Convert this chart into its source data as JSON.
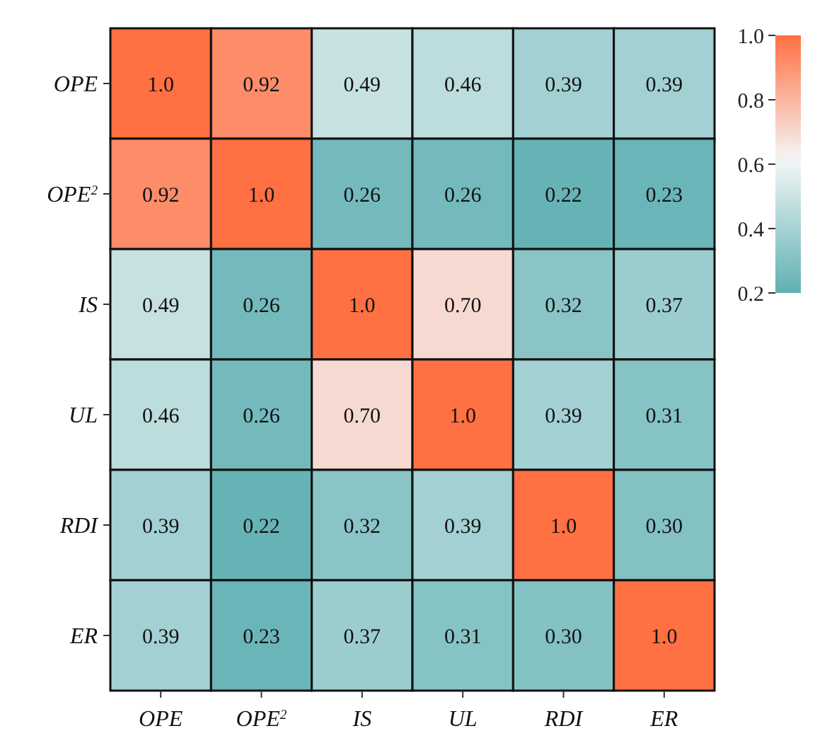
{
  "chart_data": {
    "type": "heatmap",
    "categories": [
      "OPE",
      "OPE$^{2}$",
      "IS",
      "UL",
      "RDI",
      "ER"
    ],
    "y_categories": [
      "OPE",
      "OPE$^{2}$",
      "IS",
      "UL",
      "RDI",
      "ER"
    ],
    "cells": [
      [
        1.0,
        0.92,
        0.49,
        0.46,
        0.39,
        0.39
      ],
      [
        0.92,
        1.0,
        0.26,
        0.26,
        0.22,
        0.23
      ],
      [
        0.49,
        0.26,
        1.0,
        0.7,
        0.32,
        0.37
      ],
      [
        0.46,
        0.26,
        0.7,
        1.0,
        0.39,
        0.31
      ],
      [
        0.39,
        0.22,
        0.32,
        0.39,
        1.0,
        0.3
      ],
      [
        0.39,
        0.23,
        0.37,
        0.31,
        0.3,
        1.0
      ]
    ],
    "cell_labels": [
      [
        "1.0",
        "0.92",
        "0.49",
        "0.46",
        "0.39",
        "0.39"
      ],
      [
        "0.92",
        "1.0",
        "0.26",
        "0.26",
        "0.22",
        "0.23"
      ],
      [
        "0.49",
        "0.26",
        "1.0",
        "0.70",
        "0.32",
        "0.37"
      ],
      [
        "0.46",
        "0.26",
        "0.70",
        "1.0",
        "0.39",
        "0.31"
      ],
      [
        "0.39",
        "0.22",
        "0.32",
        "0.39",
        "1.0",
        "0.30"
      ],
      [
        "0.39",
        "0.23",
        "0.37",
        "0.31",
        "0.30",
        "1.0"
      ]
    ],
    "clim": [
      0.2,
      1.0
    ],
    "cticks": [
      {
        "value": 1.0,
        "label": "1.0"
      },
      {
        "value": 0.8,
        "label": "0.8"
      },
      {
        "value": 0.6,
        "label": "0.6"
      },
      {
        "value": 0.4,
        "label": "0.4"
      },
      {
        "value": 0.2,
        "label": "0.2"
      }
    ]
  }
}
